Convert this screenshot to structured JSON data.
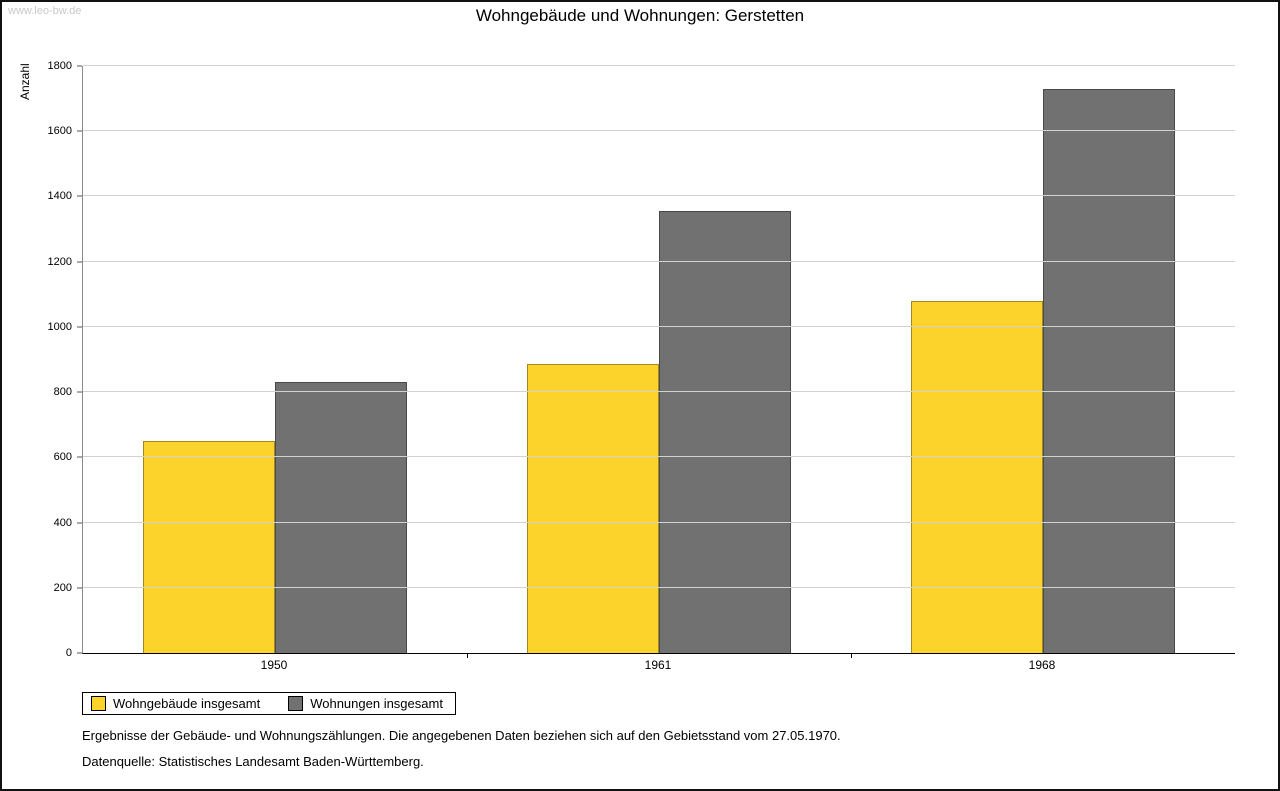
{
  "watermark": "www.leo-bw.de",
  "title": "Wohngebäude und Wohnungen: Gerstetten",
  "footer": {
    "line1": "Ergebnisse der Gebäude- und Wohnungszählungen. Die angegebenen Daten beziehen sich auf den Gebietsstand vom 27.05.1970.",
    "line2": "Datenquelle: Statistisches Landesamt Baden-Württemberg."
  },
  "chart_data": {
    "type": "bar",
    "title": "Wohngebäude und Wohnungen: Gerstetten",
    "categories": [
      "1950",
      "1961",
      "1968"
    ],
    "series": [
      {
        "name": "Wohngebäude insgesamt",
        "color": "#FCD32B",
        "values": [
          650,
          885,
          1080
        ]
      },
      {
        "name": "Wohnungen insgesamt",
        "color": "#717171",
        "values": [
          830,
          1355,
          1730
        ]
      }
    ],
    "xlabel": "",
    "ylabel": "Anzahl",
    "ylim": [
      0,
      1800
    ],
    "ytick_step": 200,
    "grid": true,
    "legend_position": "bottom-left",
    "colors": {
      "grid": "#d2d2d2",
      "axis": "#000000"
    }
  }
}
